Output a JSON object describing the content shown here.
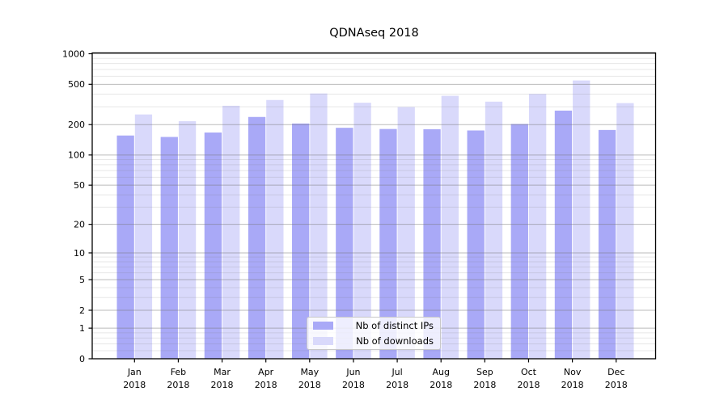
{
  "chart_data": {
    "type": "bar",
    "title": "QDNAseq 2018",
    "categories": [
      "Jan 2018",
      "Feb 2018",
      "Mar 2018",
      "Apr 2018",
      "May 2018",
      "Jun 2018",
      "Jul 2018",
      "Aug 2018",
      "Sep 2018",
      "Oct 2018",
      "Nov 2018",
      "Dec 2018"
    ],
    "series": [
      {
        "name": "Nb of distinct IPs",
        "color": "#a9a9f7",
        "values": [
          156,
          151,
          167,
          238,
          205,
          186,
          181,
          180,
          175,
          203,
          275,
          177
        ]
      },
      {
        "name": "Nb of downloads",
        "color": "#d9d9fb",
        "values": [
          252,
          216,
          307,
          350,
          406,
          329,
          298,
          385,
          337,
          402,
          545,
          326
        ]
      }
    ],
    "xlabel": "",
    "ylabel": "",
    "yscale": "log1p",
    "ylim": [
      0,
      1000
    ],
    "yticks": [
      0,
      1,
      2,
      5,
      10,
      20,
      50,
      100,
      200,
      500,
      1000
    ],
    "minor_gridlines": [
      0.2,
      0.4,
      0.6,
      0.8,
      3,
      4,
      6,
      7,
      8,
      9,
      30,
      40,
      60,
      70,
      80,
      90,
      300,
      400,
      600,
      700,
      800,
      900
    ],
    "grid": true,
    "legend_position": "inside-bottom-center"
  },
  "colors": {
    "background": "#ffffff",
    "axis": "#000000",
    "tick_text": "#000000",
    "grid_major": "rgba(120,120,120,0.5)",
    "grid_minor": "rgba(120,120,120,0.18)"
  }
}
